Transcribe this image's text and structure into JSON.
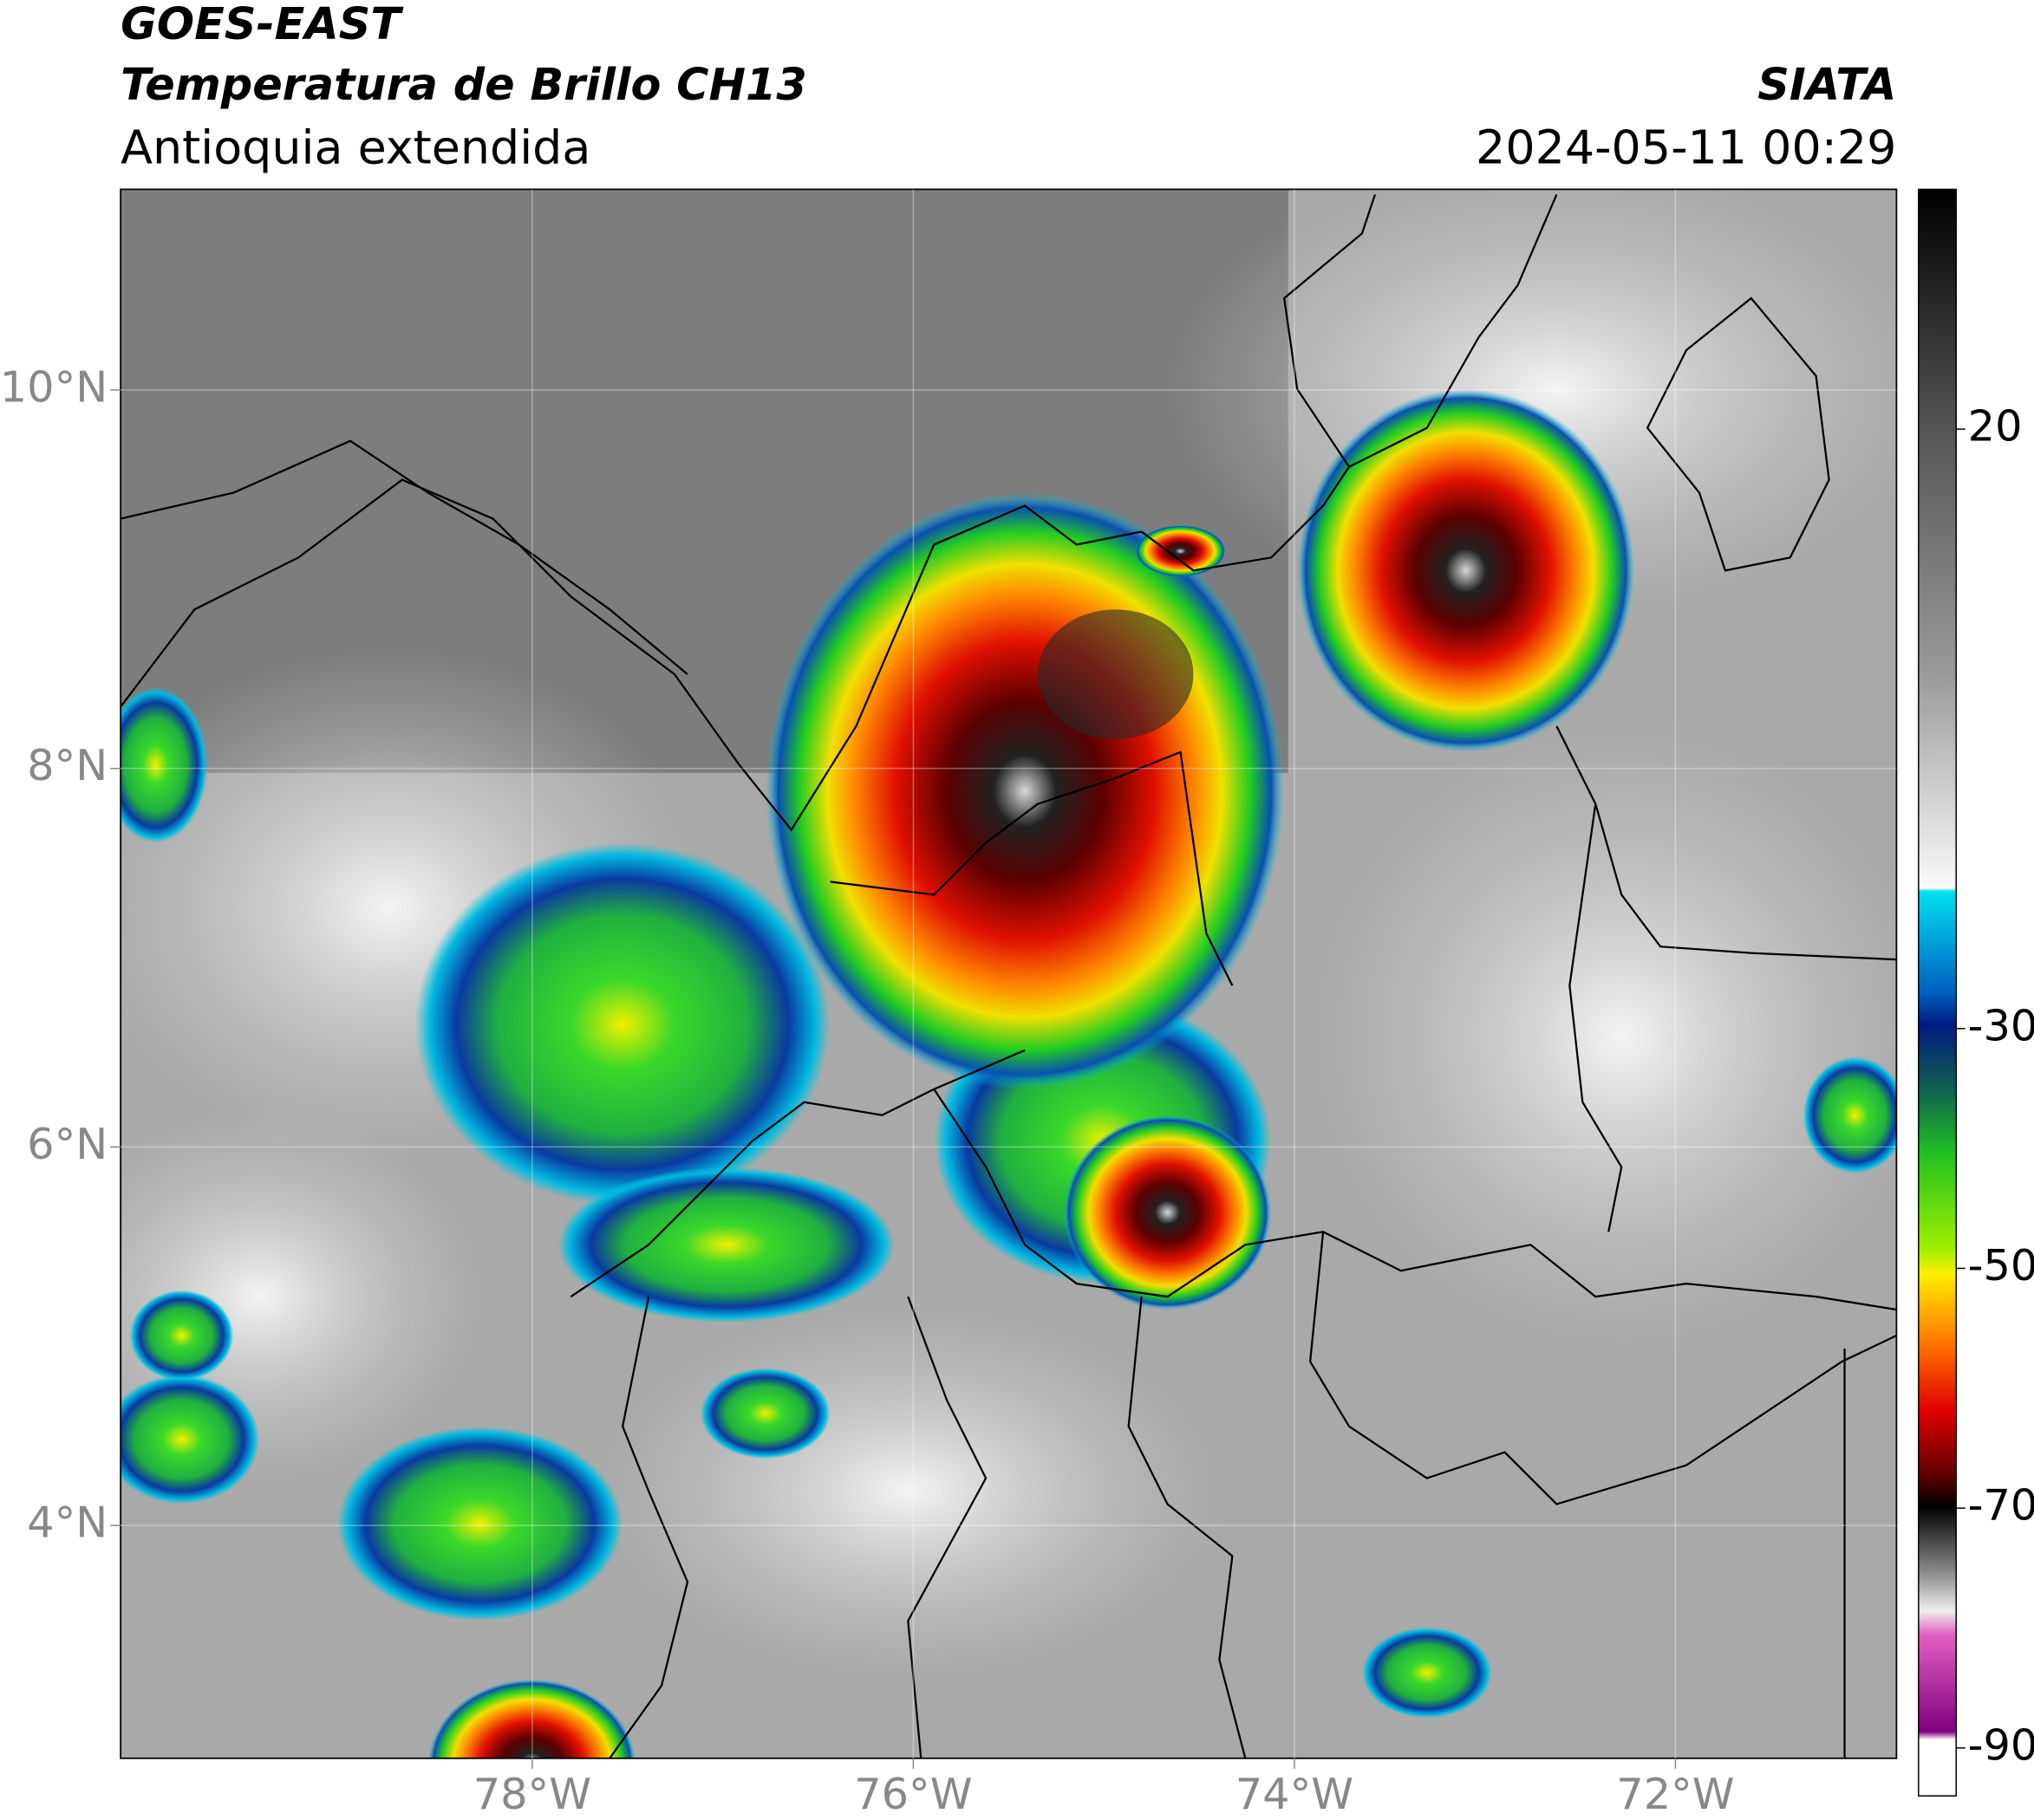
{
  "header": {
    "satellite": "GOES-EAST",
    "product": "Temperatura de Brillo CH13",
    "region": "Antioquia extendida",
    "source": "SIATA",
    "datetime": "2024-05-11 00:29"
  },
  "map": {
    "lat_lim": [
      2.77,
      11.06
    ],
    "lon_lim": [
      -80.16,
      -70.84
    ],
    "lat_ticks": [
      {
        "value": 10,
        "label": "10°N"
      },
      {
        "value": 8,
        "label": "8°N"
      },
      {
        "value": 6,
        "label": "6°N"
      },
      {
        "value": 4,
        "label": "4°N"
      }
    ],
    "lon_ticks": [
      {
        "value": -78,
        "label": "78°W"
      },
      {
        "value": -76,
        "label": "76°W"
      },
      {
        "value": -74,
        "label": "74°W"
      },
      {
        "value": -72,
        "label": "72°W"
      }
    ]
  },
  "colorbar": {
    "lim": [
      -94,
      40
    ],
    "ticks": [
      20,
      -30,
      -50,
      -70,
      -90
    ]
  }
}
